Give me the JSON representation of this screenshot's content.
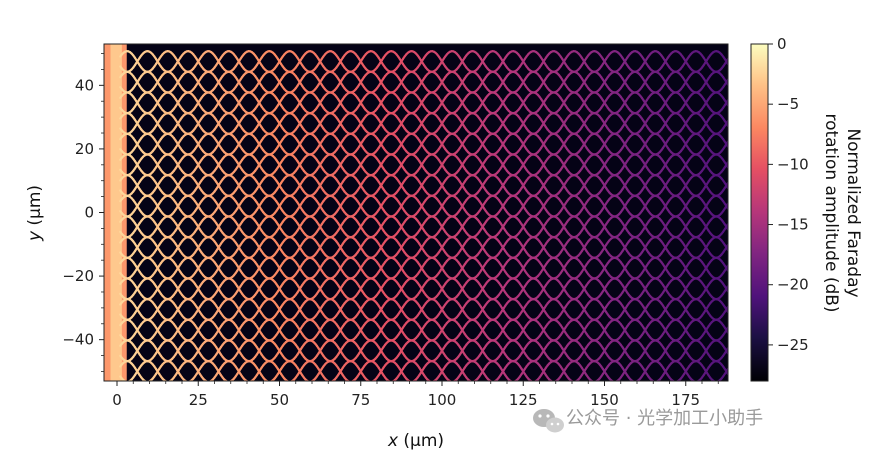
{
  "chart_data": {
    "type": "heatmap",
    "description_pattern": "interference",
    "x": {
      "label_var": "x",
      "label_unit": "(μm)",
      "range": [
        -4,
        188
      ],
      "ticks": [
        0,
        25,
        50,
        75,
        100,
        125,
        150,
        175
      ]
    },
    "y": {
      "label_var": "y",
      "label_unit": "(μm)",
      "range": [
        -53,
        53
      ],
      "ticks": [
        -40,
        -20,
        0,
        20,
        40
      ]
    },
    "colorbar": {
      "label_line1": "Normalized Faraday",
      "label_line2": "rotation amplitude (dB)",
      "range": [
        -28,
        0
      ],
      "ticks": [
        0,
        -5,
        -10,
        -15,
        -20,
        -25
      ],
      "colormap": "magma"
    },
    "channels": {
      "count": 16,
      "first_center_y": -50,
      "spacing_y": 6.5,
      "period_x": 12.5,
      "decay_db_per_um": 0.1
    }
  },
  "watermark": {
    "text": "公众号 · 光学加工小助手"
  },
  "colors": {
    "background": "#ffffff",
    "axes": "#222222",
    "watermark": "#9a9a9a"
  }
}
